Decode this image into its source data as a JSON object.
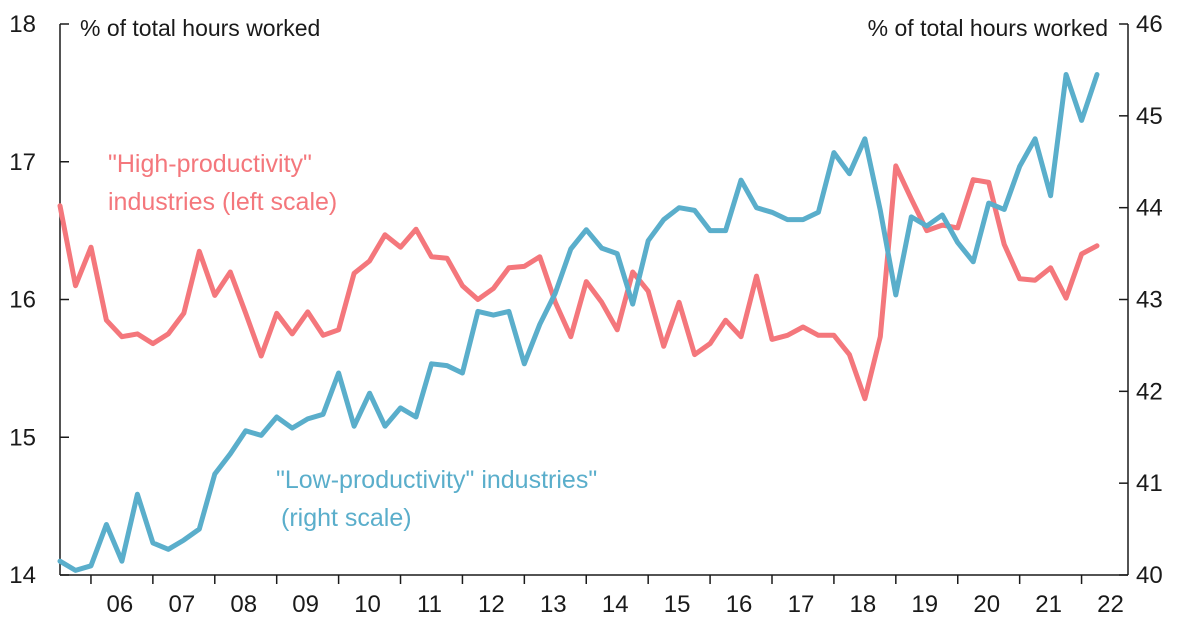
{
  "chart_data": {
    "type": "line",
    "x_tick_labels": [
      "06",
      "07",
      "08",
      "09",
      "10",
      "11",
      "12",
      "13",
      "14",
      "15",
      "16",
      "17",
      "18",
      "19",
      "20",
      "21",
      "22"
    ],
    "left_axis": {
      "unit_label": "% of total hours worked",
      "ylim": [
        14,
        18
      ],
      "ticks": [
        "14",
        "15",
        "16",
        "17",
        "18"
      ]
    },
    "right_axis": {
      "unit_label": "% of total hours worked",
      "ylim": [
        40,
        46
      ],
      "ticks": [
        "40",
        "41",
        "42",
        "43",
        "44",
        "45",
        "46"
      ]
    },
    "series": [
      {
        "name": "\"High-productivity\" industries (left scale)",
        "label_lines": [
          "\"High-productivity\"",
          "industries (left scale)"
        ],
        "axis": "left",
        "color": "#f4777c",
        "start_year": 2005.5,
        "step": 0.25,
        "values": [
          16.68,
          16.1,
          16.38,
          15.85,
          15.73,
          15.75,
          15.68,
          15.75,
          15.9,
          16.35,
          16.03,
          16.2,
          15.9,
          15.59,
          15.9,
          15.75,
          15.91,
          15.74,
          15.78,
          16.19,
          16.28,
          16.47,
          16.38,
          16.51,
          16.31,
          16.3,
          16.1,
          16.0,
          16.08,
          16.23,
          16.24,
          16.31,
          15.98,
          15.73,
          16.13,
          15.98,
          15.78,
          16.2,
          16.06,
          15.66,
          15.98,
          15.6,
          15.68,
          15.85,
          15.73,
          16.17,
          15.71,
          15.74,
          15.8,
          15.74,
          15.74,
          15.6,
          15.28,
          15.73,
          16.97,
          16.73,
          16.5,
          16.54,
          16.52,
          16.87,
          16.85,
          16.4,
          16.15,
          16.14,
          16.23,
          16.01,
          16.33,
          16.39
        ]
      },
      {
        "name": "\"Low-productivity\" industries\" (right scale)",
        "label_lines": [
          "\"Low-productivity\" industries\"",
          "(right scale)"
        ],
        "axis": "right",
        "color": "#5aaecb",
        "start_year": 2005.5,
        "step": 0.25,
        "values": [
          40.15,
          40.05,
          40.1,
          40.55,
          40.15,
          40.88,
          40.35,
          40.28,
          40.38,
          40.5,
          41.1,
          41.32,
          41.57,
          41.52,
          41.72,
          41.6,
          41.7,
          41.75,
          42.2,
          41.62,
          41.98,
          41.62,
          41.82,
          41.72,
          42.3,
          42.28,
          42.2,
          42.87,
          42.83,
          42.87,
          42.3,
          42.73,
          43.07,
          43.55,
          43.76,
          43.56,
          43.5,
          42.95,
          43.64,
          43.87,
          44.0,
          43.97,
          43.75,
          43.75,
          44.3,
          44.0,
          43.95,
          43.87,
          43.87,
          43.95,
          44.6,
          44.37,
          44.75,
          43.97,
          43.05,
          43.9,
          43.8,
          43.92,
          43.62,
          43.41,
          44.05,
          43.98,
          44.45,
          44.75,
          44.13,
          45.45,
          44.95,
          45.45
        ]
      }
    ],
    "grid": false,
    "legend": "inline labels"
  }
}
